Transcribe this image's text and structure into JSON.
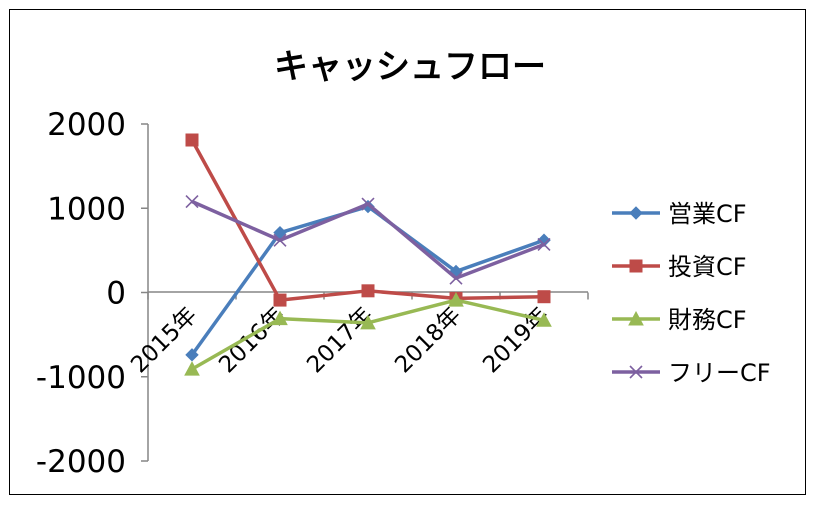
{
  "chart_data": {
    "type": "line",
    "title": "キャッシュフロー",
    "xlabel": "",
    "ylabel": "",
    "categories": [
      "2015年",
      "2016年",
      "2017年",
      "2018年",
      "2019年"
    ],
    "ylim": [
      -2000,
      2000
    ],
    "yticks": [
      2000,
      1000,
      0,
      -1000,
      -2000
    ],
    "grid": false,
    "legend_position": "right",
    "series": [
      {
        "name": "営業CF",
        "values": [
          -740,
          710,
          1020,
          250,
          620
        ],
        "color": "#4a7ebb",
        "marker": "diamond"
      },
      {
        "name": "投資CF",
        "values": [
          1810,
          -90,
          20,
          -70,
          -50
        ],
        "color": "#be4b48",
        "marker": "square"
      },
      {
        "name": "財務CF",
        "values": [
          -910,
          -310,
          -360,
          -90,
          -330
        ],
        "color": "#98b954",
        "marker": "triangle"
      },
      {
        "name": "フリーCF",
        "values": [
          1080,
          620,
          1050,
          170,
          570
        ],
        "color": "#7d60a0",
        "marker": "x"
      }
    ]
  }
}
